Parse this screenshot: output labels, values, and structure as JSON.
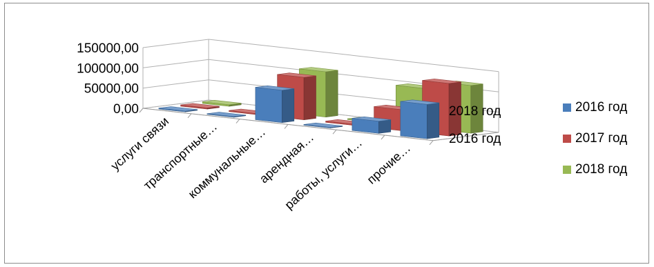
{
  "chart_data": {
    "type": "bar",
    "subtype": "3d-column",
    "categories": [
      "услуги связи",
      "транспортные…",
      "коммунальные…",
      "арендная…",
      "работы, услуги…",
      "прочие…"
    ],
    "series": [
      {
        "name": "2016 год",
        "color": "#4a7ebb",
        "values": [
          2000,
          1500,
          80000,
          1500,
          30000,
          85000
        ]
      },
      {
        "name": "2017 год",
        "color": "#be4b48",
        "values": [
          3000,
          2500,
          105000,
          3000,
          52000,
          130000
        ]
      },
      {
        "name": "2018 год",
        "color": "#98b954",
        "values": [
          4000,
          0,
          112000,
          2000,
          98000,
          118000
        ]
      }
    ],
    "y_ticks": [
      "150000,00",
      "100000,00",
      "50000,00",
      "0,00"
    ],
    "ylim": [
      0,
      150000
    ],
    "depth_labels": [
      "2018 год",
      "2016 год"
    ],
    "legend": [
      "2016 год",
      "2017 год",
      "2018 год"
    ],
    "legend_position": "right",
    "grid": true
  }
}
